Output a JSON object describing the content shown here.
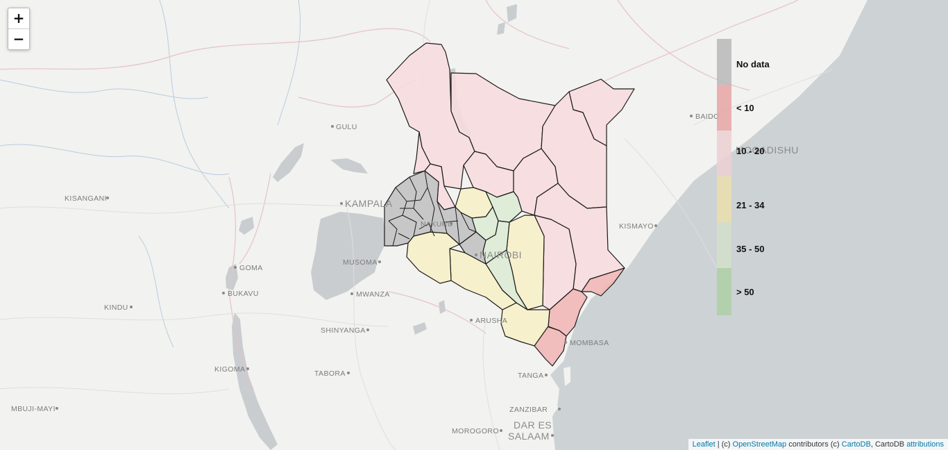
{
  "map": {
    "zoom_in_label": "+",
    "zoom_out_label": "−",
    "cities": [
      "GULU",
      "KAMPALA",
      "KISANGANI",
      "GOMA",
      "MUSOMA",
      "BUKAVU",
      "MWANZA",
      "KINDU",
      "SHINYANGA",
      "ARUSHA",
      "KIGOMA",
      "TABORA",
      "TANGA",
      "MBUJI-MAYI",
      "ZANZIBAR",
      "MOROGORO",
      "DAR ES",
      "SALAAM",
      "MOMBASA",
      "KISMAYO",
      "BAIDO",
      "MOGADISHU",
      "NAIROBI",
      "NAKURU"
    ]
  },
  "legend": {
    "entries": [
      {
        "label": "No data",
        "color": "#b8b8b8"
      },
      {
        "label": "< 10",
        "color": "#e8a4a4"
      },
      {
        "label": "10 - 20",
        "color": "#ecd0d2"
      },
      {
        "label": "21 - 34",
        "color": "#ebdfac"
      },
      {
        "label": "35 - 50",
        "color": "#d3dfc9"
      },
      {
        "label": "> 50",
        "color": "#aed0a6"
      }
    ]
  },
  "fills": {
    "nodata": "#c4c4c4",
    "low": "#f1b7b7",
    "mid_low": "#f7dcde",
    "mid": "#f5efc9",
    "mid_high": "#dcebd6",
    "water": "#cdd2d5",
    "land": "#f2f2f0"
  },
  "attribution": {
    "leaflet": "Leaflet",
    "sep1": " | (c) ",
    "osm": "OpenStreetMap",
    "contrib": " contributors (c) ",
    "cartodb": "CartoDB",
    "sep2": ", CartoDB ",
    "attributions": "attributions"
  }
}
